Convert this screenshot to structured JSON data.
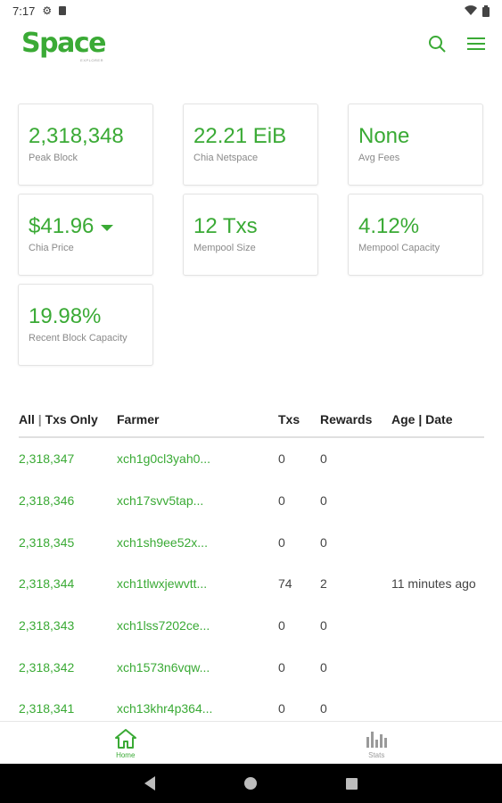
{
  "status_bar": {
    "time": "7:17",
    "icons": [
      "gear-icon",
      "sd-card-icon",
      "wifi-icon",
      "battery-icon"
    ]
  },
  "app": {
    "logo_text": "Space",
    "logo_subtext": "EXPLORER",
    "brand_color": "#3aaa35",
    "actions": [
      "search-icon",
      "menu-icon"
    ]
  },
  "cards": [
    {
      "value": "2,318,348",
      "label": "Peak Block"
    },
    {
      "value": "22.21 EiB",
      "label": "Chia Netspace"
    },
    {
      "value": "None",
      "label": "Avg Fees"
    },
    {
      "value": "$41.96",
      "label": "Chia Price",
      "has_dropdown": true
    },
    {
      "value": "12 Txs",
      "label": "Mempool Size"
    },
    {
      "value": "4.12%",
      "label": "Mempool Capacity"
    },
    {
      "value": "19.98%",
      "label": "Recent Block Capacity"
    }
  ],
  "table": {
    "headers": {
      "filter_all": "All",
      "filter_sep": " | ",
      "filter_txs": "Txs Only",
      "farmer": "Farmer",
      "txs": "Txs",
      "rewards": "Rewards",
      "age_date": "Age | Date"
    },
    "rows": [
      {
        "block": "2,318,347",
        "farmer": "xch1g0cl3yah0...",
        "txs": "0",
        "rewards": "0",
        "age": ""
      },
      {
        "block": "2,318,346",
        "farmer": "xch17svv5tap...",
        "txs": "0",
        "rewards": "0",
        "age": ""
      },
      {
        "block": "2,318,345",
        "farmer": "xch1sh9ee52x...",
        "txs": "0",
        "rewards": "0",
        "age": ""
      },
      {
        "block": "2,318,344",
        "farmer": "xch1tlwxjewvtt...",
        "txs": "74",
        "rewards": "2",
        "age": "11 minutes ago"
      },
      {
        "block": "2,318,343",
        "farmer": "xch1lss7202ce...",
        "txs": "0",
        "rewards": "0",
        "age": ""
      },
      {
        "block": "2,318,342",
        "farmer": "xch1573n6vqw...",
        "txs": "0",
        "rewards": "0",
        "age": ""
      },
      {
        "block": "2,318,341",
        "farmer": "xch13khr4p364...",
        "txs": "0",
        "rewards": "0",
        "age": ""
      }
    ]
  },
  "bottom_nav": [
    {
      "label": "Home",
      "icon": "home-icon",
      "active": true
    },
    {
      "label": "Stats",
      "icon": "stats-icon",
      "active": false
    }
  ]
}
